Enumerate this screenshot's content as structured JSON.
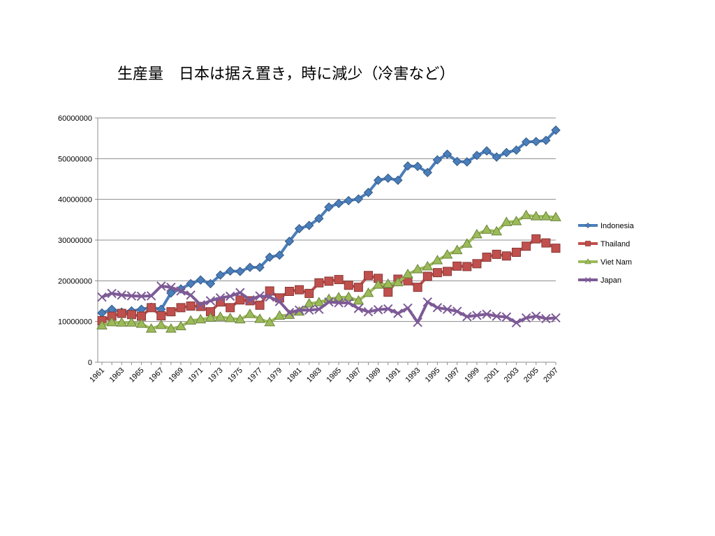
{
  "slide": {
    "title": "生産量　日本は据え置き，時に減少（冷害など）"
  },
  "colors": {
    "Indonesia": "#4a7ebb",
    "Thailand": "#c0504d",
    "Viet Nam": "#9bbb59",
    "Japan": "#7d5a96",
    "gridline": "#8c8c8c"
  },
  "chart_data": {
    "type": "line",
    "title": "",
    "xlabel": "",
    "ylabel": "",
    "ylim": [
      0,
      60000000
    ],
    "yticks": [
      "0",
      "10000000",
      "20000000",
      "30000000",
      "40000000",
      "50000000",
      "60000000"
    ],
    "grid": true,
    "legend_position": "right",
    "x": [
      1961,
      1962,
      1963,
      1964,
      1965,
      1966,
      1967,
      1968,
      1969,
      1970,
      1971,
      1972,
      1973,
      1974,
      1975,
      1976,
      1977,
      1978,
      1979,
      1980,
      1981,
      1982,
      1983,
      1984,
      1985,
      1986,
      1987,
      1988,
      1989,
      1990,
      1991,
      1992,
      1993,
      1994,
      1995,
      1996,
      1997,
      1998,
      1999,
      2000,
      2001,
      2002,
      2003,
      2004,
      2005,
      2006,
      2007
    ],
    "xtick_labels": [
      "1961",
      "1963",
      "1965",
      "1967",
      "1969",
      "1971",
      "1973",
      "1975",
      "1977",
      "1979",
      "1981",
      "1983",
      "1985",
      "1987",
      "1989",
      "1991",
      "1993",
      "1995",
      "1997",
      "1999",
      "2001",
      "2003",
      "2005",
      "2007"
    ],
    "series": [
      {
        "name": "Indonesia",
        "marker": "diamond",
        "values": [
          12100000,
          13000000,
          12300000,
          12600000,
          13000000,
          13500000,
          13000000,
          17000000,
          18000000,
          19300000,
          20200000,
          19300000,
          21400000,
          22400000,
          22300000,
          23300000,
          23300000,
          25800000,
          26300000,
          29700000,
          32800000,
          33600000,
          35300000,
          38100000,
          39000000,
          39700000,
          40100000,
          41700000,
          44700000,
          45200000,
          44700000,
          48200000,
          48100000,
          46600000,
          49700000,
          51100000,
          49300000,
          49200000,
          50800000,
          51900000,
          50400000,
          51500000,
          52100000,
          54100000,
          54200000,
          54500000,
          57000000
        ]
      },
      {
        "name": "Thailand",
        "marker": "square",
        "values": [
          10200000,
          11300000,
          12000000,
          11700000,
          11300000,
          13400000,
          11400000,
          12400000,
          13400000,
          13800000,
          13700000,
          12400000,
          14800000,
          13400000,
          15300000,
          15100000,
          14000000,
          17500000,
          15800000,
          17400000,
          17800000,
          16900000,
          19500000,
          19900000,
          20300000,
          18900000,
          18400000,
          21300000,
          20600000,
          17200000,
          20400000,
          20000000,
          18400000,
          21100000,
          22000000,
          22300000,
          23600000,
          23500000,
          24200000,
          25800000,
          26500000,
          26100000,
          27000000,
          28500000,
          30300000,
          29300000,
          28000000
        ]
      },
      {
        "name": "Viet Nam",
        "marker": "triangle",
        "values": [
          9000000,
          9800000,
          9700000,
          9700000,
          9400000,
          8200000,
          9100000,
          8200000,
          8800000,
          10200000,
          10500000,
          10900000,
          11100000,
          10800000,
          10500000,
          11800000,
          10600000,
          9800000,
          11400000,
          11600000,
          12400000,
          14400000,
          14700000,
          15500000,
          15900000,
          16000000,
          15100000,
          17000000,
          19000000,
          19200000,
          19600000,
          21600000,
          22800000,
          23500000,
          25000000,
          26400000,
          27500000,
          29100000,
          31400000,
          32500000,
          32100000,
          34400000,
          34600000,
          36100000,
          35800000,
          35800000,
          35600000
        ]
      },
      {
        "name": "Japan",
        "marker": "x",
        "values": [
          16000000,
          16900000,
          16500000,
          16300000,
          16200000,
          16300000,
          18700000,
          18400000,
          17500000,
          16500000,
          14100000,
          15100000,
          15800000,
          16200000,
          17100000,
          15300000,
          16300000,
          16000000,
          14900000,
          12200000,
          12800000,
          12800000,
          13000000,
          14800000,
          14600000,
          14600000,
          13200000,
          12400000,
          12900000,
          13100000,
          12000000,
          13300000,
          9800000,
          14800000,
          13400000,
          13000000,
          12500000,
          11200000,
          11500000,
          11800000,
          11300000,
          11100000,
          9700000,
          10900000,
          11300000,
          10700000,
          10900000
        ]
      }
    ]
  }
}
